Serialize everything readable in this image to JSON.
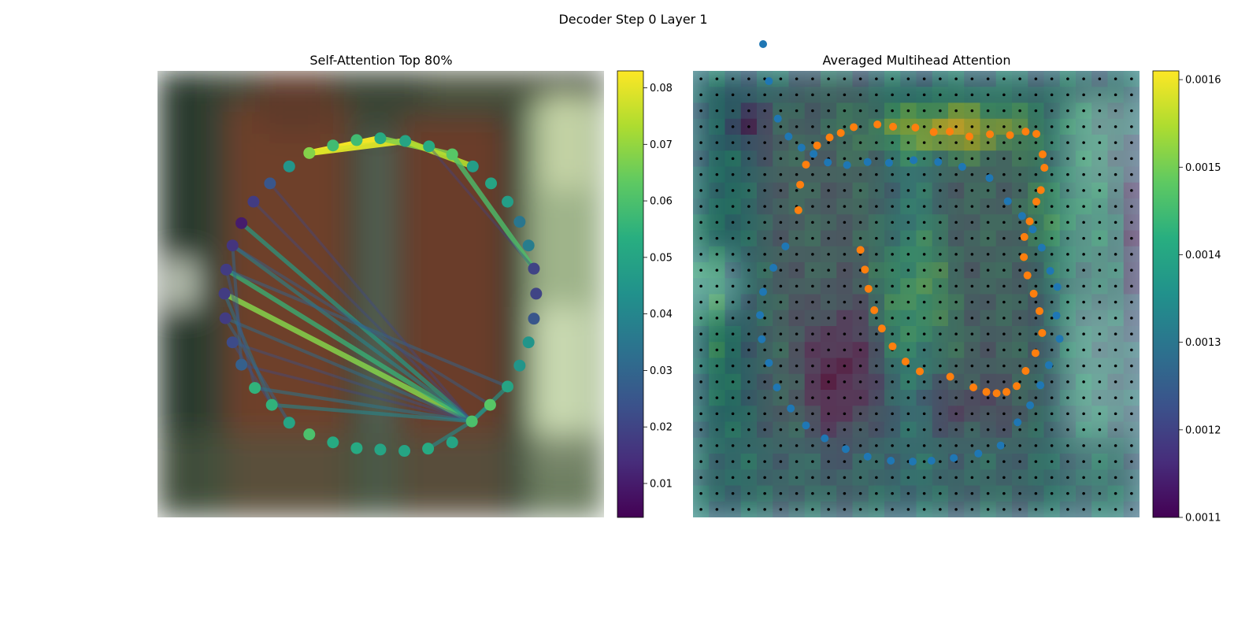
{
  "figure": {
    "suptitle": "Decoder Step 0 Layer 1"
  },
  "chart_data": [
    {
      "type": "network",
      "title": "Self-Attention Top 80%",
      "background": "blurred photo (dark greens, red-brown vertical bands, pale green bright region on the right)",
      "colormap": "viridis",
      "colorbar": {
        "min": 0.004,
        "max": 0.083,
        "ticks": [
          0.01,
          0.02,
          0.03,
          0.04,
          0.05,
          0.06,
          0.07,
          0.08
        ],
        "tick_labels": [
          "0.01",
          "0.02",
          "0.03",
          "0.04",
          "0.05",
          "0.06",
          "0.07",
          "0.08"
        ]
      },
      "image_extent": {
        "x": [
          0,
          1
        ],
        "y": [
          0,
          1
        ]
      },
      "nodes": [
        {
          "x": 0.34,
          "y": 0.816,
          "v": 0.068
        },
        {
          "x": 0.393,
          "y": 0.833,
          "v": 0.058
        },
        {
          "x": 0.446,
          "y": 0.845,
          "v": 0.058
        },
        {
          "x": 0.499,
          "y": 0.849,
          "v": 0.052
        },
        {
          "x": 0.555,
          "y": 0.843,
          "v": 0.05
        },
        {
          "x": 0.608,
          "y": 0.831,
          "v": 0.052
        },
        {
          "x": 0.66,
          "y": 0.813,
          "v": 0.062
        },
        {
          "x": 0.706,
          "y": 0.786,
          "v": 0.048
        },
        {
          "x": 0.747,
          "y": 0.748,
          "v": 0.05
        },
        {
          "x": 0.784,
          "y": 0.707,
          "v": 0.048
        },
        {
          "x": 0.811,
          "y": 0.662,
          "v": 0.035
        },
        {
          "x": 0.831,
          "y": 0.609,
          "v": 0.037
        },
        {
          "x": 0.843,
          "y": 0.557,
          "v": 0.02
        },
        {
          "x": 0.848,
          "y": 0.501,
          "v": 0.02
        },
        {
          "x": 0.843,
          "y": 0.445,
          "v": 0.025
        },
        {
          "x": 0.831,
          "y": 0.392,
          "v": 0.045
        },
        {
          "x": 0.811,
          "y": 0.34,
          "v": 0.045
        },
        {
          "x": 0.784,
          "y": 0.293,
          "v": 0.05
        },
        {
          "x": 0.745,
          "y": 0.252,
          "v": 0.062
        },
        {
          "x": 0.704,
          "y": 0.215,
          "v": 0.06
        },
        {
          "x": 0.66,
          "y": 0.168,
          "v": 0.05
        },
        {
          "x": 0.606,
          "y": 0.154,
          "v": 0.052
        },
        {
          "x": 0.553,
          "y": 0.149,
          "v": 0.05
        },
        {
          "x": 0.499,
          "y": 0.152,
          "v": 0.05
        },
        {
          "x": 0.446,
          "y": 0.155,
          "v": 0.052
        },
        {
          "x": 0.393,
          "y": 0.168,
          "v": 0.052
        },
        {
          "x": 0.34,
          "y": 0.186,
          "v": 0.06
        },
        {
          "x": 0.295,
          "y": 0.212,
          "v": 0.05
        },
        {
          "x": 0.256,
          "y": 0.252,
          "v": 0.055
        },
        {
          "x": 0.218,
          "y": 0.29,
          "v": 0.055
        },
        {
          "x": 0.188,
          "y": 0.342,
          "v": 0.028
        },
        {
          "x": 0.168,
          "y": 0.392,
          "v": 0.022
        },
        {
          "x": 0.152,
          "y": 0.446,
          "v": 0.018
        },
        {
          "x": 0.15,
          "y": 0.501,
          "v": 0.018
        },
        {
          "x": 0.154,
          "y": 0.555,
          "v": 0.018
        },
        {
          "x": 0.168,
          "y": 0.609,
          "v": 0.016
        },
        {
          "x": 0.188,
          "y": 0.659,
          "v": 0.01
        },
        {
          "x": 0.215,
          "y": 0.707,
          "v": 0.018
        },
        {
          "x": 0.252,
          "y": 0.748,
          "v": 0.025
        },
        {
          "x": 0.295,
          "y": 0.786,
          "v": 0.045
        }
      ],
      "edges": [
        {
          "from": 0,
          "to": 3,
          "v": 0.082
        },
        {
          "from": 0,
          "to": 4,
          "v": 0.079
        },
        {
          "from": 3,
          "to": 6,
          "v": 0.068
        },
        {
          "from": 4,
          "to": 7,
          "v": 0.074
        },
        {
          "from": 6,
          "to": 12,
          "v": 0.06
        },
        {
          "from": 5,
          "to": 12,
          "v": 0.02
        },
        {
          "from": 19,
          "to": 36,
          "v": 0.048
        },
        {
          "from": 19,
          "to": 33,
          "v": 0.068
        },
        {
          "from": 19,
          "to": 34,
          "v": 0.056
        },
        {
          "from": 19,
          "to": 35,
          "v": 0.04
        },
        {
          "from": 19,
          "to": 32,
          "v": 0.032
        },
        {
          "from": 19,
          "to": 31,
          "v": 0.024
        },
        {
          "from": 19,
          "to": 30,
          "v": 0.022
        },
        {
          "from": 19,
          "to": 29,
          "v": 0.035
        },
        {
          "from": 19,
          "to": 28,
          "v": 0.04
        },
        {
          "from": 19,
          "to": 21,
          "v": 0.042
        },
        {
          "from": 19,
          "to": 18,
          "v": 0.045
        },
        {
          "from": 19,
          "to": 17,
          "v": 0.045
        },
        {
          "from": 17,
          "to": 34,
          "v": 0.03
        },
        {
          "from": 18,
          "to": 35,
          "v": 0.028
        },
        {
          "from": 28,
          "to": 33,
          "v": 0.034
        },
        {
          "from": 27,
          "to": 32,
          "v": 0.03
        },
        {
          "from": 30,
          "to": 35,
          "v": 0.03
        },
        {
          "from": 29,
          "to": 34,
          "v": 0.026
        },
        {
          "from": 28,
          "to": 31,
          "v": 0.024
        },
        {
          "from": 19,
          "to": 37,
          "v": 0.022
        },
        {
          "from": 19,
          "to": 38,
          "v": 0.021
        }
      ]
    },
    {
      "type": "heatmap",
      "title": "Averaged Multihead Attention",
      "background": "same blurred photo, low alpha",
      "colormap": "viridis",
      "grid_size": [
        28,
        28
      ],
      "colorbar": {
        "min": 0.0011,
        "max": 0.00161,
        "ticks": [
          0.0011,
          0.0012,
          0.0013,
          0.0014,
          0.0015,
          0.0016
        ],
        "tick_labels": [
          "0.0011",
          "0.0012",
          "0.0013",
          "0.0014",
          "0.0015",
          "0.0016"
        ]
      },
      "overlay_points": {
        "grid_dots": {
          "color": "#000000",
          "count": 784
        },
        "series": [
          {
            "color": "#1f77b4",
            "points": [
              [
                0.157,
                0.56
              ],
              [
                0.17,
                0.477
              ],
              [
                0.19,
                0.393
              ],
              [
                0.214,
                0.353
              ],
              [
                0.243,
                0.328
              ],
              [
                0.27,
                0.314
              ],
              [
                0.302,
                0.295
              ],
              [
                0.345,
                0.289
              ],
              [
                0.391,
                0.296
              ],
              [
                0.439,
                0.294
              ],
              [
                0.494,
                0.3
              ],
              [
                0.549,
                0.296
              ],
              [
                0.603,
                0.285
              ],
              [
                0.664,
                0.26
              ],
              [
                0.705,
                0.208
              ],
              [
                0.737,
                0.175
              ],
              [
                0.761,
                0.145
              ],
              [
                0.781,
                0.104
              ],
              [
                0.8,
                0.052
              ],
              [
                0.816,
                0.016
              ],
              [
                0.814,
                -0.048
              ],
              [
                0.821,
                -0.1
              ],
              [
                0.797,
                -0.159
              ],
              [
                0.778,
                -0.204
              ],
              [
                0.755,
                -0.249
              ],
              [
                0.727,
                -0.287
              ],
              [
                0.689,
                -0.339
              ],
              [
                0.639,
                -0.357
              ],
              [
                0.584,
                -0.367
              ],
              [
                0.534,
                -0.373
              ],
              [
                0.492,
                -0.375
              ],
              [
                0.443,
                -0.373
              ],
              [
                0.391,
                -0.364
              ],
              [
                0.342,
                -0.347
              ],
              [
                0.295,
                -0.323
              ],
              [
                0.253,
                -0.294
              ],
              [
                0.219,
                -0.256
              ],
              [
                0.188,
                -0.209
              ],
              [
                0.17,
                -0.154
              ],
              [
                0.154,
                -0.101
              ],
              [
                0.15,
                -0.047
              ],
              [
                0.157,
                0.005
              ],
              [
                0.18,
                0.059
              ],
              [
                0.207,
                0.107
              ]
            ]
          },
          {
            "color": "#ff7f0e",
            "points": [
              [
                0.236,
                0.188
              ],
              [
                0.24,
                0.245
              ],
              [
                0.253,
                0.29
              ],
              [
                0.278,
                0.333
              ],
              [
                0.306,
                0.351
              ],
              [
                0.331,
                0.361
              ],
              [
                0.36,
                0.374
              ],
              [
                0.413,
                0.38
              ],
              [
                0.448,
                0.375
              ],
              [
                0.498,
                0.373
              ],
              [
                0.539,
                0.363
              ],
              [
                0.575,
                0.364
              ],
              [
                0.619,
                0.353
              ],
              [
                0.665,
                0.358
              ],
              [
                0.71,
                0.356
              ],
              [
                0.745,
                0.364
              ],
              [
                0.769,
                0.359
              ],
              [
                0.783,
                0.313
              ],
              [
                0.787,
                0.283
              ],
              [
                0.779,
                0.233
              ],
              [
                0.769,
                0.207
              ],
              [
                0.754,
                0.163
              ],
              [
                0.742,
                0.128
              ],
              [
                0.741,
                0.083
              ],
              [
                0.749,
                0.042
              ],
              [
                0.763,
                0.001
              ],
              [
                0.776,
                -0.038
              ],
              [
                0.782,
                -0.087
              ],
              [
                0.767,
                -0.132
              ],
              [
                0.745,
                -0.172
              ],
              [
                0.725,
                -0.206
              ],
              [
                0.702,
                -0.219
              ],
              [
                0.68,
                -0.222
              ],
              [
                0.657,
                -0.219
              ],
              [
                0.628,
                -0.209
              ],
              [
                0.576,
                -0.185
              ],
              [
                0.508,
                -0.173
              ],
              [
                0.476,
                -0.151
              ],
              [
                0.447,
                -0.117
              ],
              [
                0.423,
                -0.077
              ],
              [
                0.406,
                -0.036
              ],
              [
                0.393,
                0.012
              ],
              [
                0.385,
                0.055
              ],
              [
                0.375,
                0.099
              ]
            ]
          }
        ]
      }
    }
  ]
}
